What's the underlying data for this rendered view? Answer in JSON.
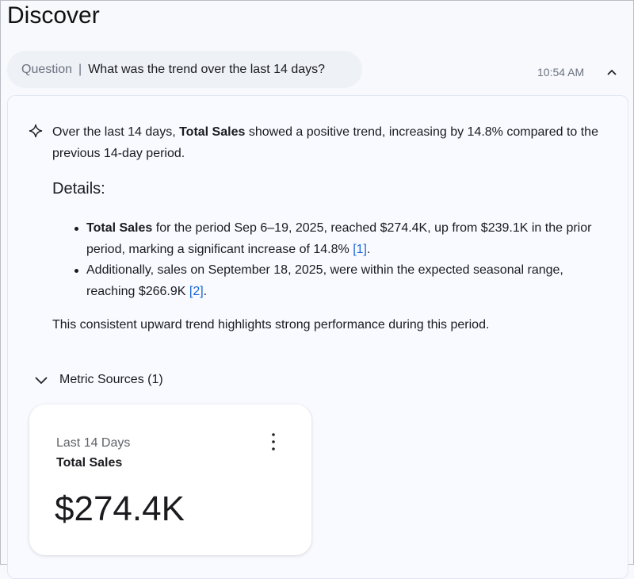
{
  "page": {
    "title": "Discover"
  },
  "question": {
    "label": "Question",
    "separator": "|",
    "text": "What was the trend over the last 14 days?",
    "time": "10:54 AM"
  },
  "response": {
    "summary": {
      "pre": "Over the last 14 days, ",
      "bold": "Total Sales",
      "post": " showed a positive trend, increasing by 14.8% compared to the previous 14-day period."
    },
    "details_heading": "Details:",
    "bullets": [
      {
        "bold": "Total Sales",
        "text": " for the period Sep 6–19, 2025, reached $274.4K, up from $239.1K in the prior period, marking a significant increase of 14.8% ",
        "ref": "[1]",
        "end": "."
      },
      {
        "bold": "",
        "text": "Additionally, sales on September 18, 2025, were within the expected seasonal range, reaching $266.9K ",
        "ref": "[2]",
        "end": "."
      }
    ],
    "closing": "This consistent upward trend highlights strong performance during this period."
  },
  "sources": {
    "label": "Metric Sources (1)",
    "card": {
      "period": "Last 14 Days",
      "metric": "Total Sales",
      "value": "$274.4K"
    }
  },
  "colors": {
    "link": "#1a66d6",
    "pill": "#eef1f5"
  }
}
